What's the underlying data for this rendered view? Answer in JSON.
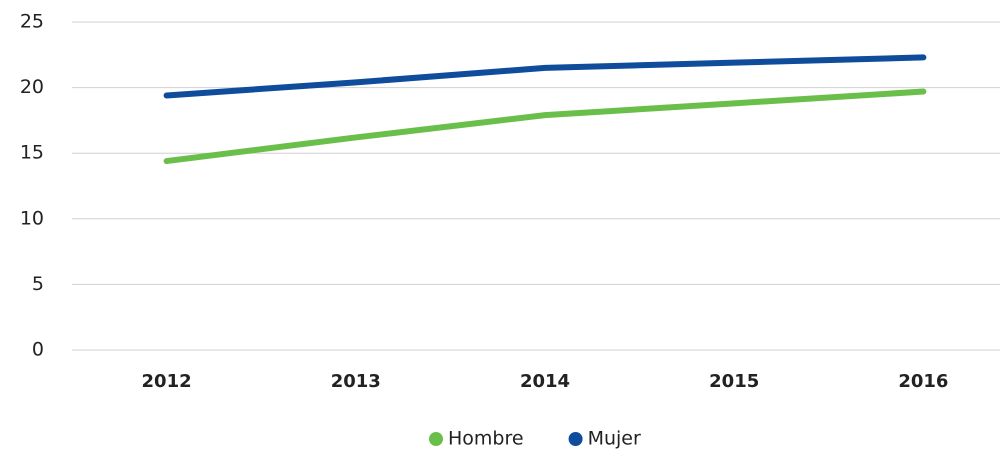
{
  "chart_data": {
    "type": "line",
    "categories": [
      "2012",
      "2013",
      "2014",
      "2015",
      "2016"
    ],
    "series": [
      {
        "name": "Hombre",
        "color": "#6abf4b",
        "values": [
          14.4,
          16.2,
          17.9,
          18.8,
          19.7
        ]
      },
      {
        "name": "Mujer",
        "color": "#0f4c9c",
        "values": [
          19.4,
          20.4,
          21.5,
          21.9,
          22.3
        ]
      }
    ],
    "ylim": [
      0,
      25
    ],
    "yticks": [
      0,
      5,
      10,
      15,
      20,
      25
    ],
    "grid": true,
    "legend": "bottom"
  }
}
